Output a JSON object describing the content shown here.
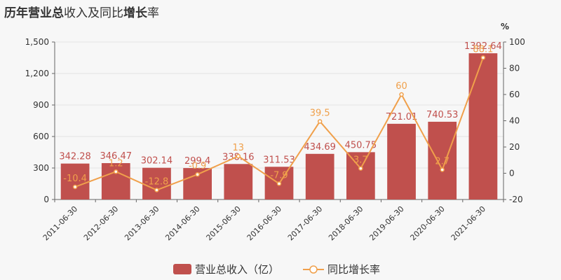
{
  "title": {
    "part1": "历年",
    "part2": "营业总",
    "part3": "收入及同比",
    "part4": "增长",
    "part5": "率"
  },
  "chart_data": {
    "type": "bar",
    "categories": [
      "2011-06-30",
      "2012-06-30",
      "2013-06-30",
      "2014-06-30",
      "2015-06-30",
      "2016-06-30",
      "2017-06-30",
      "2018-06-30",
      "2019-06-30",
      "2020-06-30",
      "2021-06-30"
    ],
    "series": [
      {
        "name": "营业总收入（亿）",
        "type": "bar",
        "axis": "left",
        "color": "#c0504d",
        "values": [
          342.28,
          346.47,
          302.14,
          299.4,
          338.16,
          311.53,
          434.69,
          450.75,
          721.01,
          740.53,
          1392.64
        ],
        "labels": [
          "342.28",
          "346.47",
          "302.14",
          "299.4",
          "338.16",
          "311.53",
          "434.69",
          "450.75",
          "721.01",
          "740.53",
          "1392.64"
        ]
      },
      {
        "name": "同比增长率",
        "type": "line",
        "axis": "right",
        "color": "#f0a04b",
        "values": [
          -10.4,
          1.2,
          -12.8,
          -0.9,
          13,
          -7.9,
          39.5,
          3.7,
          60,
          2.7,
          88.1
        ],
        "labels": [
          "-10.4",
          "1.2",
          "-12.8",
          "-0.9",
          "13",
          "-7.9",
          "39.5",
          "3.7",
          "60",
          "2.7",
          "88.1"
        ]
      }
    ],
    "left_axis": {
      "ylim": [
        0,
        1500
      ],
      "ticks": [
        "0",
        "300",
        "600",
        "900",
        "1,200",
        "1,500"
      ],
      "tick_values": [
        0,
        300,
        600,
        900,
        1200,
        1500
      ]
    },
    "right_axis": {
      "ylim": [
        -20,
        100
      ],
      "ticks": [
        "-20",
        "0",
        "20",
        "40",
        "60",
        "80",
        "100"
      ],
      "tick_values": [
        -20,
        0,
        20,
        40,
        60,
        80,
        100
      ],
      "unit": "%"
    },
    "legend": {
      "position": "bottom",
      "bar_label": "营业总收入（亿）",
      "line_label": "同比增长率"
    }
  }
}
